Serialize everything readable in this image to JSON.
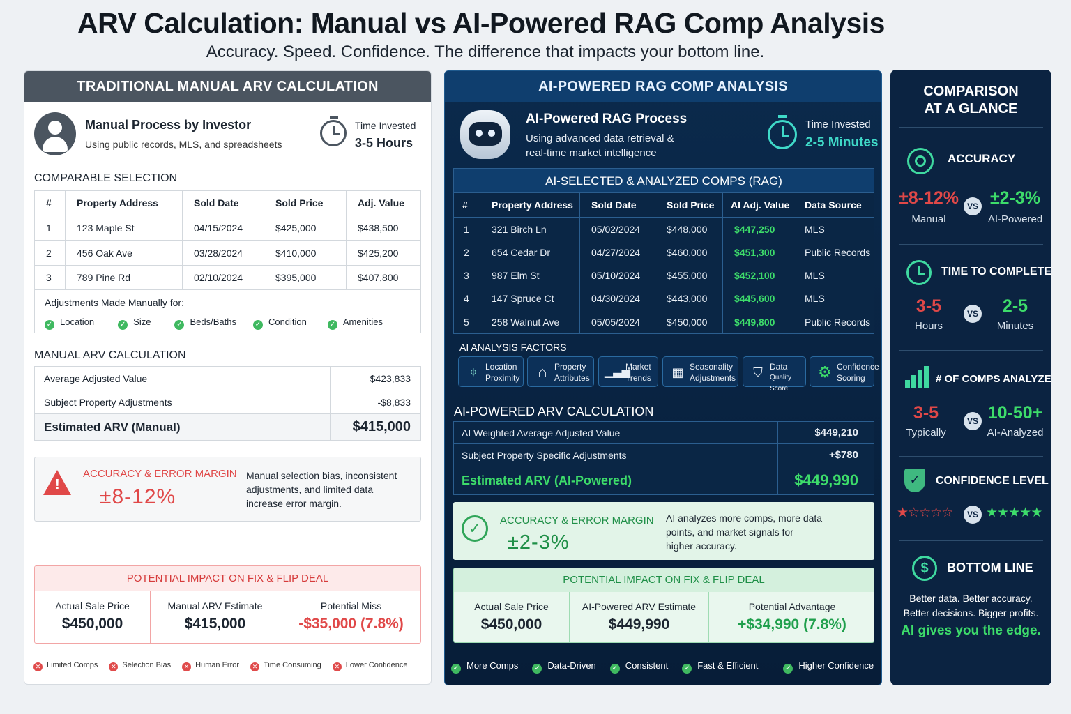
{
  "title": "ARV Calculation: Manual vs AI-Powered RAG Comp Analysis",
  "subtitle": "Accuracy. Speed. Confidence. The difference that impacts your bottom line.",
  "manual": {
    "header": "TRADITIONAL MANUAL ARV CALCULATION",
    "process_title": "Manual Process by Investor",
    "process_desc": "Using public records, MLS, and spreadsheets",
    "time_label": "Time Invested",
    "time_value": "3-5 Hours",
    "comp_heading": "COMPARABLE SELECTION",
    "columns": [
      "#",
      "Property Address",
      "Sold Date",
      "Sold Price",
      "Adj. Value"
    ],
    "rows": [
      [
        "1",
        "123 Maple St",
        "04/15/2024",
        "$425,000",
        "$438,500"
      ],
      [
        "2",
        "456 Oak Ave",
        "03/28/2024",
        "$410,000",
        "$425,200"
      ],
      [
        "3",
        "789 Pine Rd",
        "02/10/2024",
        "$395,000",
        "$407,800"
      ]
    ],
    "adjustments_label": "Adjustments Made Manually for:",
    "adjustments": [
      "Location",
      "Size",
      "Beds/Baths",
      "Condition",
      "Amenities"
    ],
    "calc_heading": "MANUAL ARV CALCULATION",
    "calc": [
      [
        "Average Adjusted Value",
        "$423,833"
      ],
      [
        "Subject Property Adjustments",
        "-$8,833"
      ],
      [
        "Estimated ARV (Manual)",
        "$415,000"
      ]
    ],
    "accuracy_title": "ACCURACY & ERROR MARGIN",
    "accuracy_value": "±8-12%",
    "accuracy_desc": [
      "Manual selection bias, inconsistent",
      "adjustments, and limited data",
      "increase error margin."
    ],
    "impact_title": "POTENTIAL IMPACT ON FIX & FLIP DEAL",
    "impact": [
      [
        "Actual Sale Price",
        "$450,000"
      ],
      [
        "Manual ARV Estimate",
        "$415,000"
      ],
      [
        "Potential Miss",
        "-$35,000 (7.8%)"
      ]
    ],
    "cons": [
      "Limited Comps",
      "Selection Bias",
      "Human Error",
      "Time Consuming",
      "Lower Confidence"
    ]
  },
  "ai": {
    "header": "AI-POWERED RAG COMP ANALYSIS",
    "process_title": "AI-Powered RAG Process",
    "process_desc": [
      "Using advanced data retrieval &",
      "real-time market intelligence"
    ],
    "time_label": "Time Invested",
    "time_value": "2-5 Minutes",
    "comp_heading": "AI-SELECTED & ANALYZED COMPS (RAG)",
    "columns": [
      "#",
      "Property Address",
      "Sold Date",
      "Sold Price",
      "AI Adj. Value",
      "Data Source"
    ],
    "rows": [
      [
        "1",
        "321 Birch Ln",
        "05/02/2024",
        "$448,000",
        "$447,250",
        "MLS"
      ],
      [
        "2",
        "654 Cedar Dr",
        "04/27/2024",
        "$460,000",
        "$451,300",
        "Public Records"
      ],
      [
        "3",
        "987 Elm St",
        "05/10/2024",
        "$455,000",
        "$452,100",
        "MLS"
      ],
      [
        "4",
        "147 Spruce Ct",
        "04/30/2024",
        "$443,000",
        "$445,600",
        "MLS"
      ],
      [
        "5",
        "258 Walnut Ave",
        "05/05/2024",
        "$450,000",
        "$449,800",
        "Public Records"
      ]
    ],
    "factors_heading": "AI ANALYSIS FACTORS",
    "factors": [
      [
        "Location",
        "Proximity"
      ],
      [
        "Property",
        "Attributes"
      ],
      [
        "Market",
        "Trends"
      ],
      [
        "Seasonality",
        "Adjustments"
      ],
      [
        "Data",
        "Quality Score"
      ],
      [
        "Confidence",
        "Scoring"
      ]
    ],
    "calc_heading": "AI-POWERED ARV CALCULATION",
    "calc": [
      [
        "AI Weighted Average Adjusted Value",
        "$449,210"
      ],
      [
        "Subject Property Specific Adjustments",
        "+$780"
      ],
      [
        "Estimated ARV (AI-Powered)",
        "$449,990"
      ]
    ],
    "accuracy_title": "ACCURACY & ERROR MARGIN",
    "accuracy_value": "±2-3%",
    "accuracy_desc": [
      "AI analyzes more comps, more data",
      "points, and market signals for",
      "higher accuracy."
    ],
    "impact_title": "POTENTIAL IMPACT ON FIX & FLIP DEAL",
    "impact": [
      [
        "Actual Sale Price",
        "$450,000"
      ],
      [
        "AI-Powered ARV Estimate",
        "$449,990"
      ],
      [
        "Potential Advantage",
        "+$34,990 (7.8%)"
      ]
    ],
    "pros": [
      "More Comps",
      "Data-Driven",
      "Consistent",
      "Fast & Efficient",
      "Higher Confidence"
    ]
  },
  "glance": {
    "title": [
      "COMPARISON",
      "AT A GLANCE"
    ],
    "vs": "VS",
    "accuracy": {
      "label": "ACCURACY",
      "manual": "±8-12%",
      "manual_sub": "Manual",
      "ai": "±2-3%",
      "ai_sub": "AI-Powered"
    },
    "time": {
      "label": "TIME TO COMPLETE",
      "manual": "3-5",
      "manual_sub": "Hours",
      "ai": "2-5",
      "ai_sub": "Minutes"
    },
    "comps": {
      "label": "# OF COMPS ANALYZED",
      "manual": "3-5",
      "manual_sub": "Typically",
      "ai": "10-50+",
      "ai_sub": "AI-Analyzed"
    },
    "confidence": {
      "label": "CONFIDENCE LEVEL",
      "manual_stars": 1,
      "ai_stars": 5,
      "max_stars": 5
    },
    "bottom": {
      "label": "BOTTOM LINE",
      "lines": [
        "Better data. Better accuracy.",
        "Better decisions. Bigger profits."
      ],
      "tagline": "AI gives you the edge."
    }
  },
  "colors": {
    "manual_red": "#e04848",
    "ai_green": "#3ddc6a",
    "navy": "#0b2341",
    "teal": "#3fd9c8"
  }
}
